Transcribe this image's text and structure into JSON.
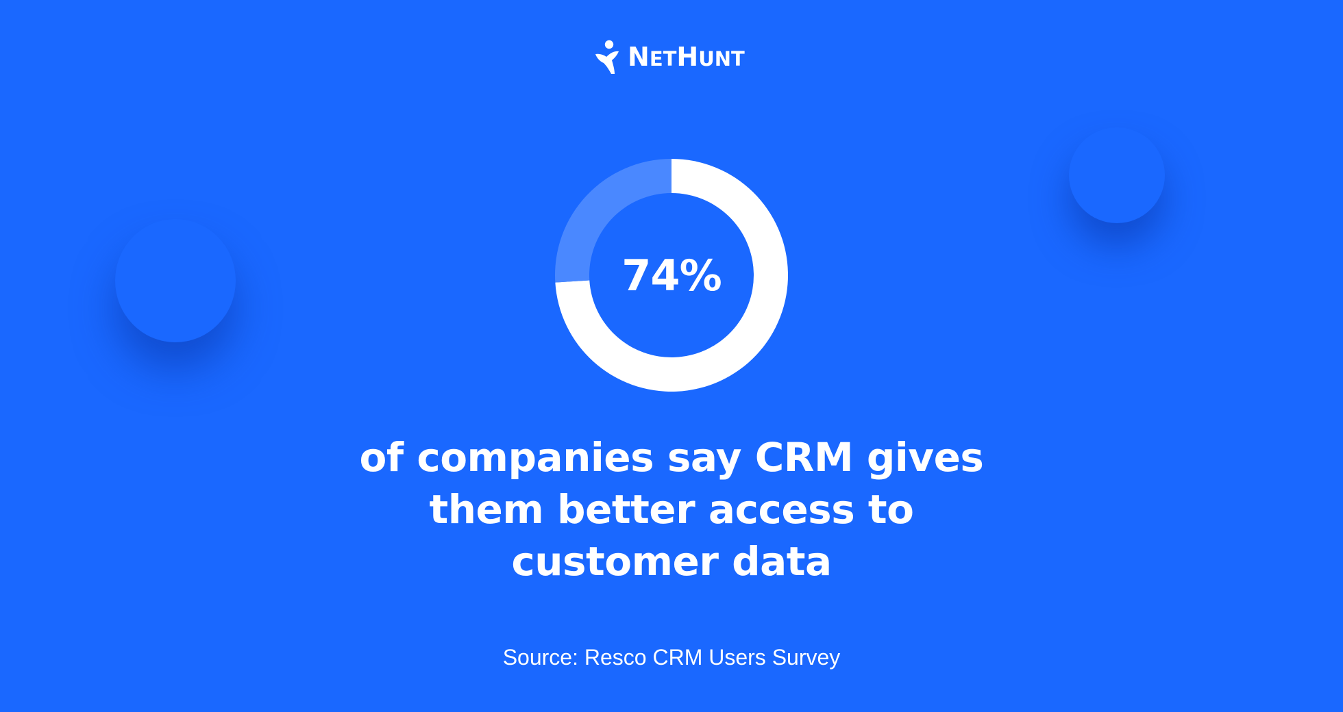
{
  "brand": {
    "logo_text": "NetHunt",
    "logo_icon": "person-jumping-icon"
  },
  "chart_data": {
    "type": "pie",
    "style": "donut",
    "center_label": "74%",
    "slices": [
      {
        "label": "",
        "value": 74,
        "color": "#ffffff"
      },
      {
        "label": "",
        "value": 26,
        "color": "#4a88ff"
      }
    ]
  },
  "headline": {
    "lines": [
      "of companies say CRM gives",
      "them better access to",
      "customer data"
    ]
  },
  "source": "Source: Resco CRM Users Survey",
  "colors": {
    "background": "#1a68ff",
    "primary_slice": "#ffffff",
    "secondary_slice": "#4a88ff",
    "text": "#ffffff"
  }
}
